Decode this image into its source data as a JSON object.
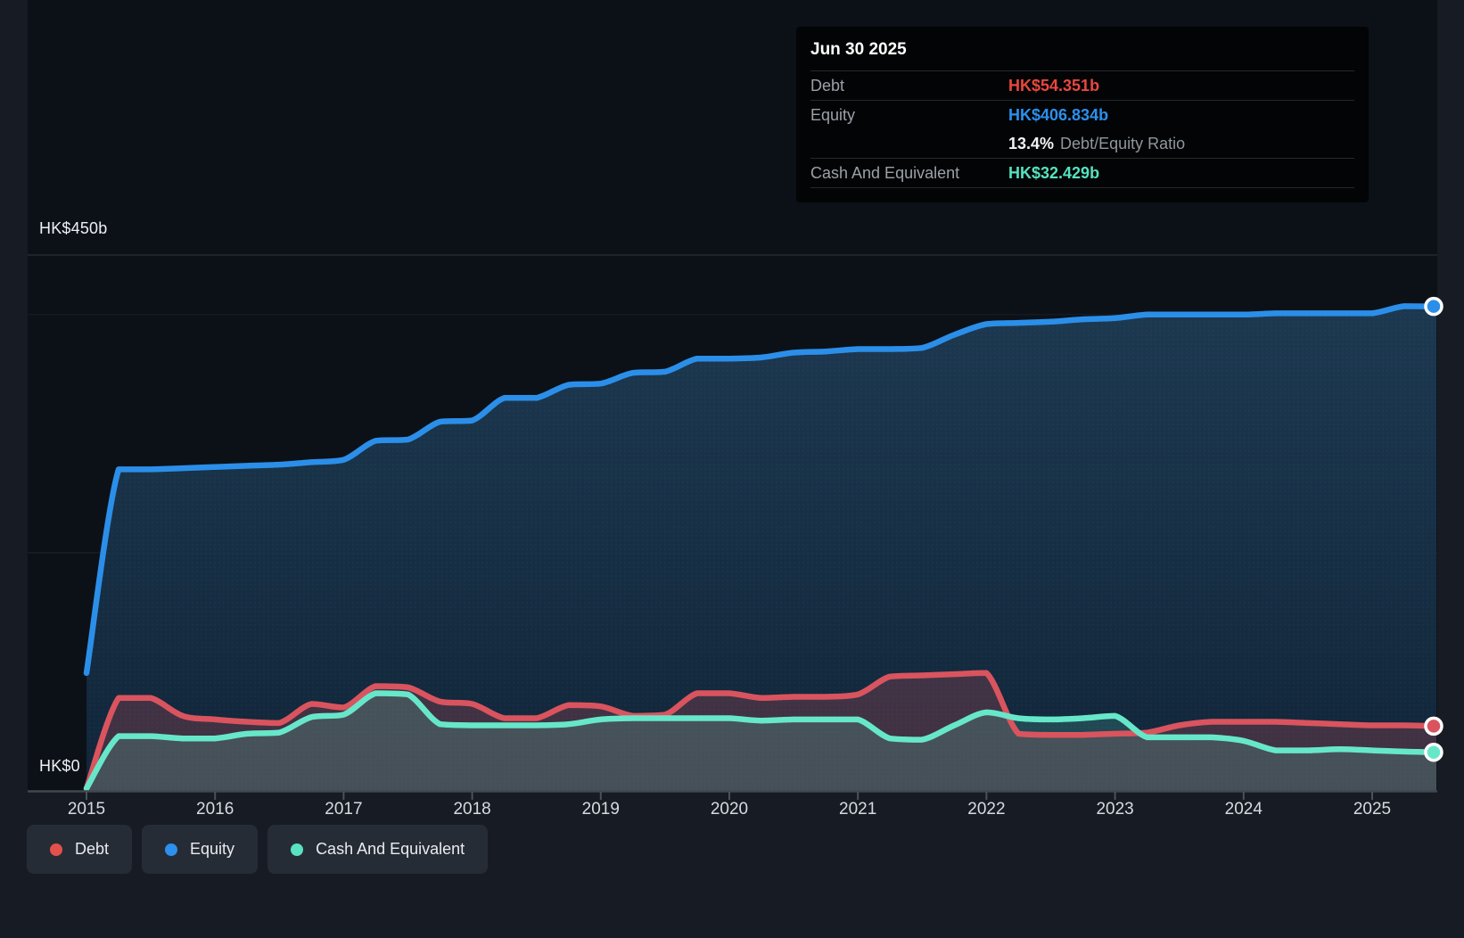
{
  "tooltip": {
    "date": "Jun 30 2025",
    "debt_label": "Debt",
    "debt_value": "HK$54.351b",
    "equity_label": "Equity",
    "equity_value": "HK$406.834b",
    "ratio_value": "13.4%",
    "ratio_label": "Debt/Equity Ratio",
    "cash_label": "Cash And Equivalent",
    "cash_value": "HK$32.429b"
  },
  "axis": {
    "y_top": "HK$450b",
    "y_zero": "HK$0"
  },
  "legend": [
    {
      "label": "Debt",
      "color": "#e4504b"
    },
    {
      "label": "Equity",
      "color": "#2b90ee"
    },
    {
      "label": "Cash And Equivalent",
      "color": "#58e2c2"
    }
  ],
  "colors": {
    "debt_line": "#d9545e",
    "equity_line": "#2b8fe9",
    "cash_line": "#67e7c9",
    "debt_value": "#e8473f",
    "equity_value": "#2b90ee",
    "cash_value": "#55e2c1"
  },
  "chart_data": {
    "type": "area",
    "x_unit": "year",
    "x": [
      2015,
      2015.25,
      2015.5,
      2015.75,
      2016,
      2016.25,
      2016.5,
      2016.75,
      2017,
      2017.25,
      2017.5,
      2017.75,
      2018,
      2018.25,
      2018.5,
      2018.75,
      2019,
      2019.25,
      2019.5,
      2019.75,
      2020,
      2020.25,
      2020.5,
      2020.75,
      2021,
      2021.25,
      2021.5,
      2021.75,
      2022,
      2022.25,
      2022.5,
      2022.75,
      2023,
      2023.25,
      2023.5,
      2023.75,
      2024,
      2024.25,
      2024.5,
      2024.75,
      2025,
      2025.25,
      2025.5
    ],
    "series": [
      {
        "name": "Equity",
        "color": "#2b8fe9",
        "values": [
          99,
          270,
          270,
          271,
          272,
          273,
          274,
          276,
          278,
          294,
          295,
          310,
          311,
          330,
          330,
          341,
          342,
          351,
          352,
          363,
          363,
          364,
          368,
          369,
          371,
          371,
          372,
          383,
          392,
          393,
          394,
          396,
          397,
          400,
          400,
          400,
          400,
          401,
          401,
          401,
          401,
          407,
          406.834
        ]
      },
      {
        "name": "Debt",
        "color": "#d9545e",
        "values": [
          2,
          78,
          78,
          63,
          60,
          58,
          57,
          73,
          70,
          88,
          87,
          75,
          73,
          61,
          61,
          72,
          71,
          63,
          64,
          82,
          82,
          78,
          79,
          79,
          81,
          96,
          97,
          98,
          99,
          48,
          47,
          47,
          48,
          49,
          55,
          58,
          58,
          58,
          57,
          56,
          55,
          55,
          54.351
        ]
      },
      {
        "name": "Cash And Equivalent",
        "color": "#67e7c9",
        "values": [
          2,
          46,
          46,
          44,
          44,
          48,
          49,
          62,
          64,
          82,
          81,
          56,
          55,
          55,
          55,
          56,
          60,
          61,
          61,
          61,
          61,
          59,
          60,
          60,
          60,
          44,
          43,
          55,
          66,
          61,
          60,
          61,
          63,
          45,
          45,
          45,
          42,
          34,
          34,
          35,
          34,
          33,
          32.429
        ]
      }
    ],
    "x_ticks": [
      2015,
      2016,
      2017,
      2018,
      2019,
      2020,
      2021,
      2022,
      2023,
      2024,
      2025
    ],
    "ylim": [
      0,
      450
    ],
    "y_axis_labels": [
      "HK$450b",
      "HK$0"
    ],
    "y_gridlines": [
      450,
      400,
      200
    ],
    "grid": true,
    "legend_position": "bottom",
    "last_point_date": "Jun 30 2025",
    "last_values": {
      "Debt": 54.351,
      "Equity": 406.834,
      "Cash And Equivalent": 32.429
    }
  }
}
